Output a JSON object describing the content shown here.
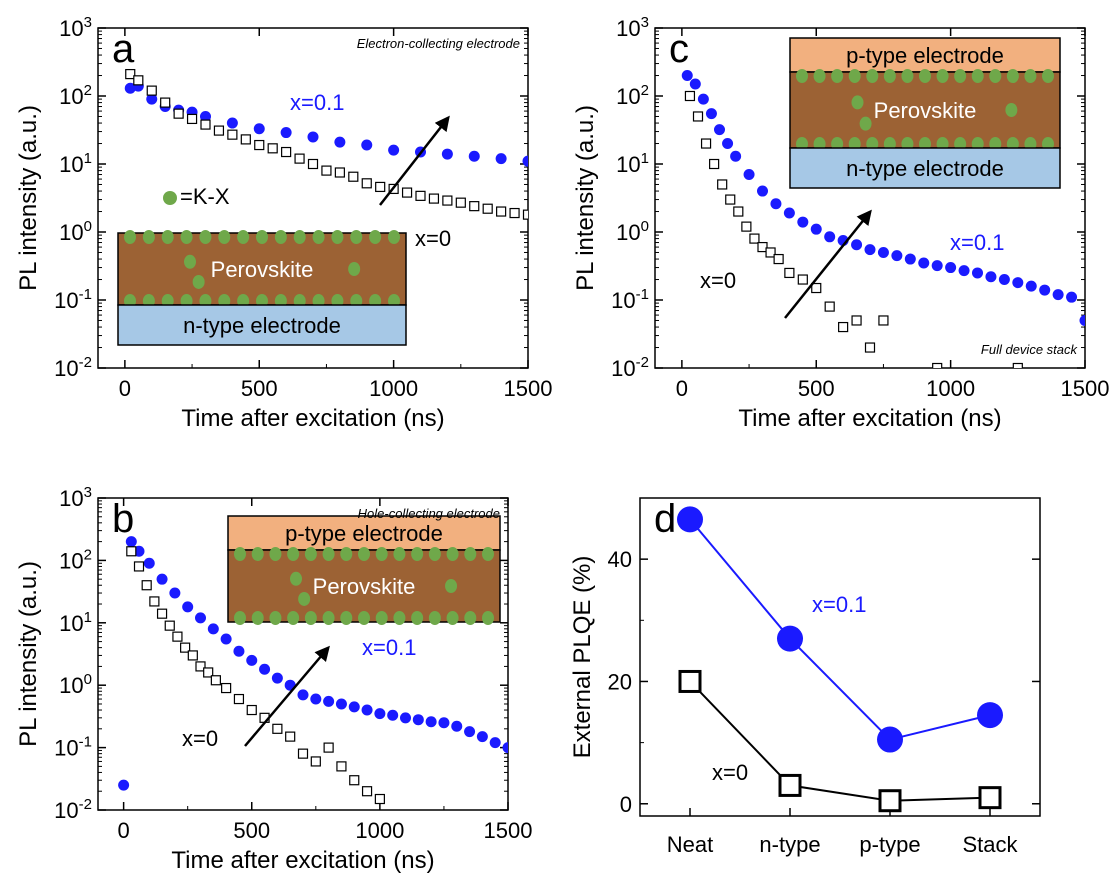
{
  "colors": {
    "blue": "#1a1aff",
    "black": "#000000",
    "perovskite": "#9c6234",
    "n_electrode": "#a6c8e6",
    "p_electrode": "#f2b07f",
    "kx_dot": "#6fa84a"
  },
  "chart_data": [
    {
      "id": "a",
      "type": "scatter",
      "panel_letter": "a",
      "corner_note": "Electron-collecting electrode",
      "xlabel": "Time after excitation (ns)",
      "ylabel": "PL intensity (a.u.)",
      "xlim": [
        -100,
        1500
      ],
      "ylim_log10": [
        -2,
        3
      ],
      "yscale": "log",
      "xticks": [
        "0",
        "500",
        "1000",
        "1500"
      ],
      "yticks": [
        "10-2",
        "10-1",
        "100",
        "101",
        "102",
        "103"
      ],
      "series": [
        {
          "name": "x=0.1",
          "marker": "filled-circle",
          "color": "#1a1aff",
          "points": [
            [
              20,
              130
            ],
            [
              50,
              140
            ],
            [
              100,
              90
            ],
            [
              150,
              70
            ],
            [
              200,
              62
            ],
            [
              250,
              58
            ],
            [
              300,
              50
            ],
            [
              400,
              40
            ],
            [
              500,
              33
            ],
            [
              600,
              29
            ],
            [
              700,
              25
            ],
            [
              800,
              21
            ],
            [
              900,
              19
            ],
            [
              1000,
              16
            ],
            [
              1100,
              15
            ],
            [
              1200,
              14
            ],
            [
              1300,
              13
            ],
            [
              1400,
              12
            ],
            [
              1500,
              11
            ]
          ]
        },
        {
          "name": "x=0",
          "marker": "open-square",
          "color": "#000000",
          "points": [
            [
              20,
              210
            ],
            [
              50,
              170
            ],
            [
              100,
              120
            ],
            [
              150,
              80
            ],
            [
              200,
              55
            ],
            [
              250,
              46
            ],
            [
              300,
              38
            ],
            [
              350,
              31
            ],
            [
              400,
              27
            ],
            [
              450,
              23
            ],
            [
              500,
              19
            ],
            [
              550,
              17
            ],
            [
              600,
              15
            ],
            [
              650,
              12
            ],
            [
              700,
              10
            ],
            [
              750,
              8
            ],
            [
              800,
              7.5
            ],
            [
              850,
              6.5
            ],
            [
              900,
              5.2
            ],
            [
              950,
              4.6
            ],
            [
              1000,
              4.3
            ],
            [
              1050,
              3.8
            ],
            [
              1100,
              3.4
            ],
            [
              1150,
              3.1
            ],
            [
              1200,
              2.9
            ],
            [
              1250,
              2.7
            ],
            [
              1300,
              2.4
            ],
            [
              1350,
              2.2
            ],
            [
              1400,
              2
            ],
            [
              1450,
              1.9
            ],
            [
              1500,
              1.8
            ]
          ]
        }
      ],
      "labels": {
        "blue": "x=0.1",
        "black": "x=0"
      },
      "legend_text": "=K-X",
      "inset": {
        "layers": [
          "Perovskite",
          "n-type electrode"
        ]
      }
    },
    {
      "id": "c",
      "type": "scatter",
      "panel_letter": "c",
      "corner_note": "Full device stack",
      "xlabel": "Time after excitation (ns)",
      "ylabel": "PL intensity (a.u.)",
      "xlim": [
        -100,
        1500
      ],
      "ylim_log10": [
        -2,
        3
      ],
      "yscale": "log",
      "xticks": [
        "0",
        "500",
        "1000",
        "1500"
      ],
      "yticks": [
        "10-2",
        "10-1",
        "100",
        "101",
        "102",
        "103"
      ],
      "series": [
        {
          "name": "x=0.1",
          "marker": "filled-circle",
          "color": "#1a1aff",
          "points": [
            [
              20,
              200
            ],
            [
              50,
              150
            ],
            [
              80,
              90
            ],
            [
              110,
              55
            ],
            [
              140,
              32
            ],
            [
              170,
              20
            ],
            [
              200,
              13
            ],
            [
              250,
              7
            ],
            [
              300,
              4
            ],
            [
              350,
              2.6
            ],
            [
              400,
              1.9
            ],
            [
              450,
              1.4
            ],
            [
              500,
              1.1
            ],
            [
              550,
              0.85
            ],
            [
              600,
              0.75
            ],
            [
              650,
              0.65
            ],
            [
              700,
              0.55
            ],
            [
              750,
              0.5
            ],
            [
              800,
              0.45
            ],
            [
              850,
              0.4
            ],
            [
              900,
              0.35
            ],
            [
              950,
              0.32
            ],
            [
              1000,
              0.3
            ],
            [
              1050,
              0.27
            ],
            [
              1100,
              0.25
            ],
            [
              1150,
              0.22
            ],
            [
              1200,
              0.2
            ],
            [
              1250,
              0.18
            ],
            [
              1300,
              0.16
            ],
            [
              1350,
              0.14
            ],
            [
              1400,
              0.12
            ],
            [
              1450,
              0.11
            ],
            [
              1500,
              0.05
            ]
          ]
        },
        {
          "name": "x=0",
          "marker": "open-square",
          "color": "#000000",
          "points": [
            [
              30,
              100
            ],
            [
              60,
              50
            ],
            [
              90,
              20
            ],
            [
              120,
              10
            ],
            [
              150,
              5
            ],
            [
              180,
              3
            ],
            [
              210,
              2
            ],
            [
              240,
              1.2
            ],
            [
              270,
              0.8
            ],
            [
              300,
              0.6
            ],
            [
              330,
              0.5
            ],
            [
              360,
              0.4
            ],
            [
              400,
              0.25
            ],
            [
              450,
              0.2
            ],
            [
              500,
              0.15
            ],
            [
              550,
              0.08
            ],
            [
              600,
              0.04
            ],
            [
              650,
              0.05
            ],
            [
              700,
              0.02
            ],
            [
              750,
              0.05
            ],
            [
              950,
              0.01
            ],
            [
              1250,
              0.01
            ]
          ]
        }
      ],
      "labels": {
        "blue": "x=0.1",
        "black": "x=0"
      },
      "inset": {
        "layers": [
          "p-type electrode",
          "Perovskite",
          "n-type electrode"
        ]
      }
    },
    {
      "id": "b",
      "type": "scatter",
      "panel_letter": "b",
      "corner_note": "Hole-collecting electrode",
      "xlabel": "Time after excitation (ns)",
      "ylabel": "PL intensity (a.u.)",
      "xlim": [
        -100,
        1500
      ],
      "ylim_log10": [
        -2,
        3
      ],
      "yscale": "log",
      "xticks": [
        "0",
        "500",
        "1000",
        "1500"
      ],
      "yticks": [
        "10-2",
        "10-1",
        "100",
        "101",
        "102",
        "103"
      ],
      "series": [
        {
          "name": "x=0.1",
          "marker": "filled-circle",
          "color": "#1a1aff",
          "points": [
            [
              0,
              0.025
            ],
            [
              30,
              200
            ],
            [
              60,
              140
            ],
            [
              100,
              90
            ],
            [
              150,
              50
            ],
            [
              200,
              30
            ],
            [
              250,
              18
            ],
            [
              300,
              12
            ],
            [
              350,
              8
            ],
            [
              400,
              5.5
            ],
            [
              450,
              3.5
            ],
            [
              500,
              2.5
            ],
            [
              550,
              1.8
            ],
            [
              600,
              1.3
            ],
            [
              650,
              1
            ],
            [
              700,
              0.7
            ],
            [
              750,
              0.6
            ],
            [
              800,
              0.55
            ],
            [
              850,
              0.5
            ],
            [
              900,
              0.45
            ],
            [
              950,
              0.4
            ],
            [
              1000,
              0.35
            ],
            [
              1050,
              0.33
            ],
            [
              1100,
              0.3
            ],
            [
              1150,
              0.28
            ],
            [
              1200,
              0.26
            ],
            [
              1250,
              0.25
            ],
            [
              1300,
              0.22
            ],
            [
              1350,
              0.18
            ],
            [
              1400,
              0.15
            ],
            [
              1450,
              0.12
            ],
            [
              1500,
              0.1
            ]
          ]
        },
        {
          "name": "x=0",
          "marker": "open-square",
          "color": "#000000",
          "points": [
            [
              30,
              140
            ],
            [
              60,
              80
            ],
            [
              90,
              40
            ],
            [
              120,
              22
            ],
            [
              150,
              14
            ],
            [
              180,
              9
            ],
            [
              210,
              6
            ],
            [
              240,
              4
            ],
            [
              270,
              3
            ],
            [
              300,
              2
            ],
            [
              330,
              1.6
            ],
            [
              360,
              1.2
            ],
            [
              400,
              0.9
            ],
            [
              450,
              0.6
            ],
            [
              500,
              0.4
            ],
            [
              550,
              0.3
            ],
            [
              600,
              0.2
            ],
            [
              650,
              0.15
            ],
            [
              700,
              0.08
            ],
            [
              750,
              0.06
            ],
            [
              800,
              0.1
            ],
            [
              850,
              0.05
            ],
            [
              900,
              0.03
            ],
            [
              950,
              0.02
            ],
            [
              1000,
              0.015
            ]
          ]
        }
      ],
      "labels": {
        "blue": "x=0.1",
        "black": "x=0"
      },
      "inset": {
        "layers": [
          "p-type electrode",
          "Perovskite"
        ]
      }
    },
    {
      "id": "d",
      "type": "line",
      "panel_letter": "d",
      "ylabel": "External PLQE (%)",
      "categories": [
        "Neat",
        "n-type",
        "p-type",
        "Stack"
      ],
      "ylim": [
        -2,
        50
      ],
      "yticks": [
        "0",
        "20",
        "40"
      ],
      "series": [
        {
          "name": "x=0.1",
          "marker": "filled-circle",
          "color": "#1a1aff",
          "values": [
            46.5,
            27,
            10.5,
            14.5
          ]
        },
        {
          "name": "x=0",
          "marker": "open-square",
          "color": "#000000",
          "values": [
            20,
            3,
            0.5,
            1
          ]
        }
      ],
      "labels": {
        "blue": "x=0.1",
        "black": "x=0"
      }
    }
  ]
}
